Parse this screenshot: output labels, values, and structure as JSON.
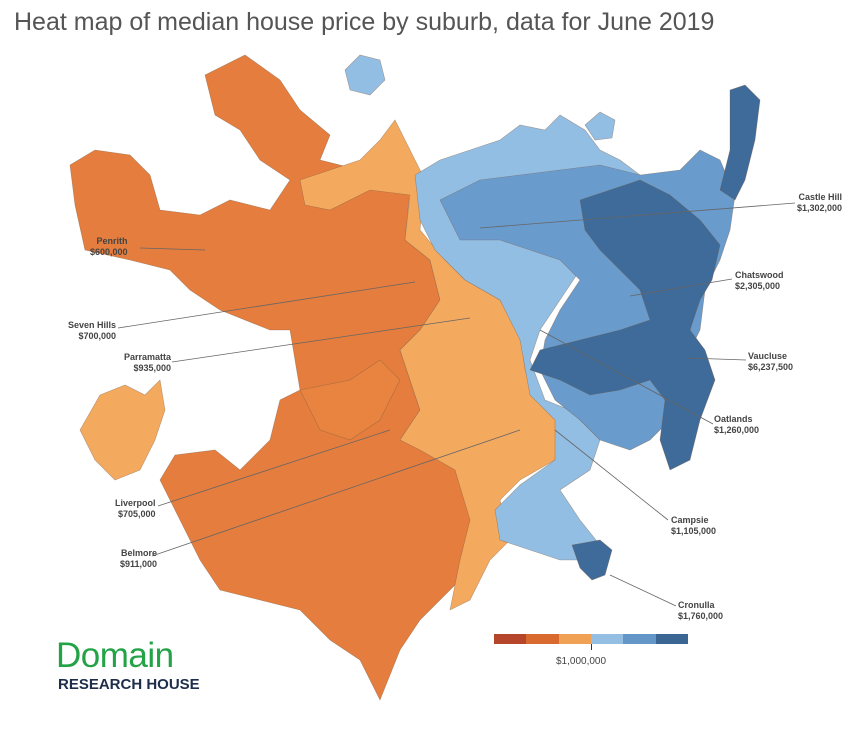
{
  "title": "Heat map of median house price by suburb, data for June 2019",
  "logo": {
    "brand": "Domain",
    "sub": "RESEARCH HOUSE"
  },
  "legend": {
    "label": "$1,000,000",
    "colors": [
      "#b5462b",
      "#d96a2f",
      "#f0a154",
      "#94bfe2",
      "#6596c8",
      "#3b6593"
    ]
  },
  "colors": {
    "orange_dark": "#e47d3d",
    "orange_light": "#f4aa5e",
    "blue_light": "#93bee3",
    "blue_mid": "#6a9bcd",
    "blue_dark": "#3e6b99"
  },
  "suburbs": [
    {
      "name": "Penrith",
      "price": "$600,000"
    },
    {
      "name": "Seven Hills",
      "price": "$700,000"
    },
    {
      "name": "Parramatta",
      "price": "$935,000"
    },
    {
      "name": "Liverpool",
      "price": "$705,000"
    },
    {
      "name": "Belmore",
      "price": "$911,000"
    },
    {
      "name": "Castle Hill",
      "price": "$1,302,000"
    },
    {
      "name": "Chatswood",
      "price": "$2,305,000"
    },
    {
      "name": "Vaucluse",
      "price": "$6,237,500"
    },
    {
      "name": "Oatlands",
      "price": "$1,260,000"
    },
    {
      "name": "Campsie",
      "price": "$1,105,000"
    },
    {
      "name": "Cronulla",
      "price": "$1,760,000"
    }
  ]
}
